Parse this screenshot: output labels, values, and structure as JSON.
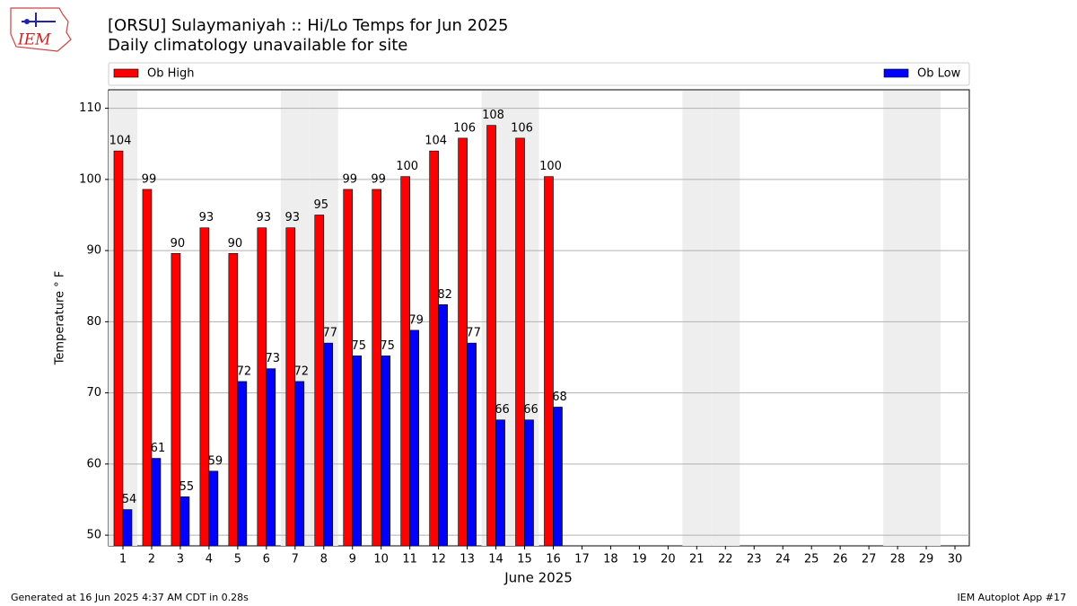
{
  "chart_data": {
    "type": "bar",
    "title": "[ORSU] Sulaymaniyah :: Hi/Lo Temps for Jun 2025",
    "subtitle": "Daily climatology unavailable for site",
    "logo_text": "IEM",
    "xlabel": "June 2025",
    "ylabel": "Temperature ° F",
    "categories": [
      "1",
      "2",
      "3",
      "4",
      "5",
      "6",
      "7",
      "8",
      "9",
      "10",
      "11",
      "12",
      "13",
      "14",
      "15",
      "16",
      "17",
      "18",
      "19",
      "20",
      "21",
      "22",
      "23",
      "24",
      "25",
      "26",
      "27",
      "28",
      "29",
      "30"
    ],
    "shaded_categories": [
      "1",
      "7",
      "8",
      "14",
      "15",
      "21",
      "22",
      "28",
      "29"
    ],
    "series": [
      {
        "name": "Ob High",
        "color": "#ff0000",
        "values": [
          104,
          98.6,
          89.6,
          93.2,
          89.6,
          93.2,
          93.2,
          95,
          98.6,
          98.6,
          100.4,
          104,
          105.8,
          107.6,
          105.8,
          100.4,
          null,
          null,
          null,
          null,
          null,
          null,
          null,
          null,
          null,
          null,
          null,
          null,
          null,
          null
        ],
        "value_labels": [
          "104",
          "99",
          "90",
          "93",
          "90",
          "93",
          "93",
          "95",
          "99",
          "99",
          "100",
          "104",
          "106",
          "108",
          "106",
          "100",
          null,
          null,
          null,
          null,
          null,
          null,
          null,
          null,
          null,
          null,
          null,
          null,
          null,
          null
        ]
      },
      {
        "name": "Ob Low",
        "color": "#0000ff",
        "values": [
          53.6,
          60.8,
          55.4,
          59,
          71.6,
          73.4,
          71.6,
          77,
          75.2,
          75.2,
          78.8,
          82.4,
          77,
          66.2,
          66.2,
          68,
          null,
          null,
          null,
          null,
          null,
          null,
          null,
          null,
          null,
          null,
          null,
          null,
          null,
          null
        ],
        "value_labels": [
          "54",
          "61",
          "55",
          "59",
          "72",
          "73",
          "72",
          "77",
          "75",
          "75",
          "79",
          "82",
          "77",
          "66",
          "66",
          "68",
          null,
          null,
          null,
          null,
          null,
          null,
          null,
          null,
          null,
          null,
          null,
          null,
          null,
          null
        ]
      }
    ],
    "ylim": [
      48.5,
      112.6
    ],
    "yticks": [
      50,
      60,
      70,
      80,
      90,
      100,
      110
    ],
    "grid": true,
    "legend": "top",
    "footer_left": "Generated at 16 Jun 2025 4:37 AM CDT in 0.28s",
    "footer_right": "IEM Autoplot App #17"
  }
}
